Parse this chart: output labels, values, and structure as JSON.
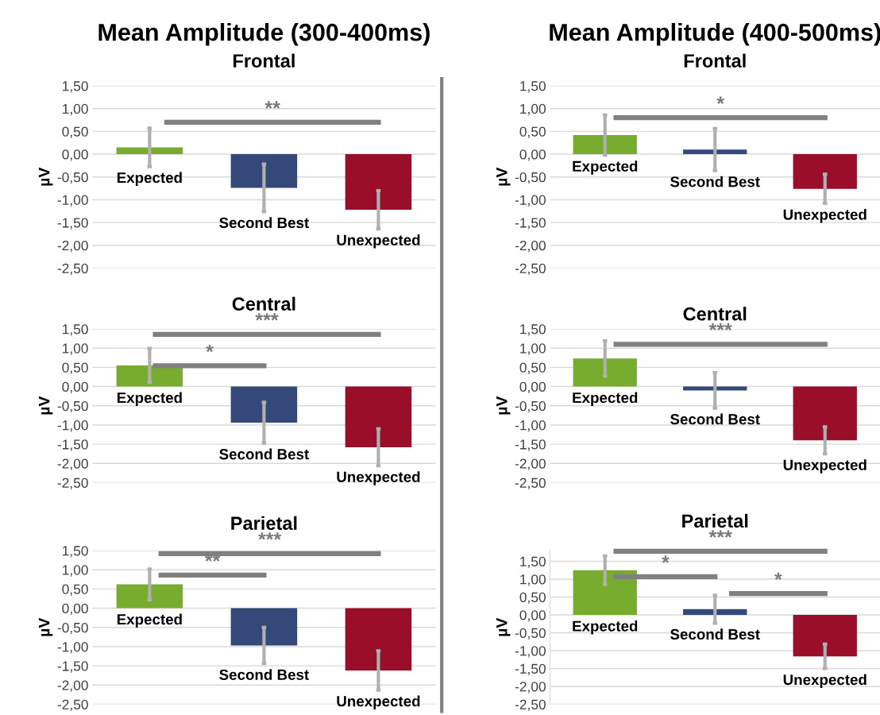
{
  "chart_data": [
    {
      "type": "bar",
      "title": "Mean Amplitude (300-400ms)",
      "subtitle": "Frontal",
      "ylabel": "µV",
      "categories": [
        null,
        null,
        null
      ],
      "value_labels": [
        "Expected",
        "Second Best",
        "Unexpected"
      ],
      "colors": [
        "#77ac2f",
        "#34497a",
        "#9b0e2a"
      ],
      "values": [
        0.15,
        -0.74,
        -1.22
      ],
      "errors": [
        0.42,
        0.52,
        0.42
      ],
      "ylim": [
        -2.5,
        1.5
      ],
      "yticks": [
        {
          "value": -2.5,
          "label": "-2,50"
        },
        {
          "value": -2.0,
          "label": "-2,00"
        },
        {
          "value": -1.5,
          "label": "-1,50"
        },
        {
          "value": -1.0,
          "label": "-1,00"
        },
        {
          "value": -0.5,
          "label": "-0,50"
        },
        {
          "value": 0,
          "label": "0,00"
        },
        {
          "value": 0.5,
          "label": "0,50"
        },
        {
          "value": 1.0,
          "label": "1,00"
        },
        {
          "value": 1.5,
          "label": "1,50"
        }
      ],
      "grid": "y",
      "annotations": [
        "**"
      ]
    },
    {
      "type": "bar",
      "title": "Mean Amplitude (400-500ms)",
      "subtitle": "Frontal",
      "ylabel": "µV",
      "categories": [
        null,
        null,
        null
      ],
      "value_labels": [
        "Expected",
        "Second Best",
        "Unexpected"
      ],
      "colors": [
        "#77ac2f",
        "#34497a",
        "#9b0e2a"
      ],
      "values": [
        0.42,
        0.1,
        -0.76
      ],
      "errors": [
        0.44,
        0.46,
        0.32
      ],
      "ylim": [
        -2.5,
        1.5
      ],
      "yticks": [
        {
          "value": -2.5,
          "label": "-2,50"
        },
        {
          "value": -2.0,
          "label": "-2,00"
        },
        {
          "value": -1.5,
          "label": "-1,50"
        },
        {
          "value": -1.0,
          "label": "-1,00"
        },
        {
          "value": -0.5,
          "label": "-0,50"
        },
        {
          "value": 0,
          "label": "0,00"
        },
        {
          "value": 0.5,
          "label": "0,50"
        },
        {
          "value": 1.0,
          "label": "1,00"
        },
        {
          "value": 1.5,
          "label": "1,50"
        }
      ],
      "grid": "y",
      "annotations": [
        "*"
      ]
    },
    {
      "type": "bar",
      "title": "Central",
      "ylabel": "µV",
      "categories": [
        null,
        null,
        null
      ],
      "value_labels": [
        "Expected",
        "Second Best",
        "Unexpected"
      ],
      "colors": [
        "#77ac2f",
        "#34497a",
        "#9b0e2a"
      ],
      "values": [
        0.55,
        -0.94,
        -1.58
      ],
      "errors": [
        0.44,
        0.53,
        0.48
      ],
      "ylim": [
        -2.5,
        1.5
      ],
      "yticks": [
        {
          "value": -2.5,
          "label": "-2,50"
        },
        {
          "value": -2.0,
          "label": "-2,00"
        },
        {
          "value": -1.5,
          "label": "-1,50"
        },
        {
          "value": -1.0,
          "label": "-1,00"
        },
        {
          "value": -0.5,
          "label": "-0,50"
        },
        {
          "value": 0,
          "label": "0,00"
        },
        {
          "value": 0.5,
          "label": "0,50"
        },
        {
          "value": 1.0,
          "label": "1,00"
        },
        {
          "value": 1.5,
          "label": "1,50"
        }
      ],
      "grid": "y",
      "annotations": [
        "***",
        "*"
      ]
    },
    {
      "type": "bar",
      "title": "Central",
      "ylabel": "µV",
      "categories": [
        null,
        null,
        null
      ],
      "value_labels": [
        "Expected",
        "Second Best",
        "Unexpected"
      ],
      "colors": [
        "#77ac2f",
        "#34497a",
        "#9b0e2a"
      ],
      "values": [
        0.73,
        -0.1,
        -1.4
      ],
      "errors": [
        0.46,
        0.46,
        0.35
      ],
      "ylim": [
        -2.5,
        1.5
      ],
      "yticks": [
        {
          "value": -2.5,
          "label": "-2,50"
        },
        {
          "value": -2.0,
          "label": "-2,00"
        },
        {
          "value": -1.5,
          "label": "-1,50"
        },
        {
          "value": -1.0,
          "label": "-1,00"
        },
        {
          "value": -0.5,
          "label": "-0,50"
        },
        {
          "value": 0,
          "label": "0,00"
        },
        {
          "value": 0.5,
          "label": "0,50"
        },
        {
          "value": 1.0,
          "label": "1,00"
        },
        {
          "value": 1.5,
          "label": "1,50"
        }
      ],
      "grid": "y",
      "annotations": [
        "***"
      ]
    },
    {
      "type": "bar",
      "title": "Parietal",
      "ylabel": "µV",
      "categories": [
        null,
        null,
        null
      ],
      "value_labels": [
        "Expected",
        "Second Best",
        "Unexpected"
      ],
      "colors": [
        "#77ac2f",
        "#34497a",
        "#9b0e2a"
      ],
      "values": [
        0.62,
        -0.97,
        -1.62
      ],
      "errors": [
        0.4,
        0.47,
        0.51
      ],
      "ylim": [
        -2.5,
        1.5
      ],
      "yticks": [
        {
          "value": -2.5,
          "label": "-2,50"
        },
        {
          "value": -2.0,
          "label": "-2,00"
        },
        {
          "value": -1.5,
          "label": "-1,50"
        },
        {
          "value": -1.0,
          "label": "-1,00"
        },
        {
          "value": -0.5,
          "label": "-0,50"
        },
        {
          "value": 0,
          "label": "0,00"
        },
        {
          "value": 0.5,
          "label": "0,50"
        },
        {
          "value": 1.0,
          "label": "1,00"
        },
        {
          "value": 1.5,
          "label": "1,50"
        }
      ],
      "grid": "y",
      "annotations": [
        "***",
        "**"
      ]
    },
    {
      "type": "bar",
      "title": "Parietal",
      "ylabel": "µV",
      "categories": [
        null,
        null,
        null
      ],
      "value_labels": [
        "Expected",
        "Second Best",
        "Unexpected"
      ],
      "colors": [
        "#77ac2f",
        "#34497a",
        "#9b0e2a"
      ],
      "values": [
        1.25,
        0.16,
        -1.16
      ],
      "errors": [
        0.4,
        0.39,
        0.34
      ],
      "ylim": [
        -2.5,
        1.8
      ],
      "yticks": [
        {
          "value": -2.5,
          "label": "-2,50"
        },
        {
          "value": -2.0,
          "label": "-2,00"
        },
        {
          "value": -1.5,
          "label": "-1,50"
        },
        {
          "value": -1.0,
          "label": "-1,00"
        },
        {
          "value": -0.5,
          "label": "-0,50"
        },
        {
          "value": 0,
          "label": "0,00"
        },
        {
          "value": 0.5,
          "label": "0,50"
        },
        {
          "value": 1.0,
          "label": "1,00"
        },
        {
          "value": 1.5,
          "label": "1,50"
        }
      ],
      "grid": "y",
      "annotations": [
        "***",
        "*",
        "*"
      ]
    }
  ]
}
